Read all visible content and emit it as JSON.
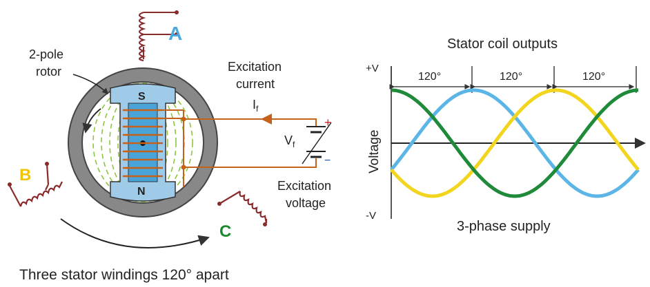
{
  "diagram": {
    "phase_labels": {
      "a": "A",
      "b": "B",
      "c": "C"
    },
    "rotor_label": [
      "2-pole",
      "rotor"
    ],
    "pole_s": "S",
    "pole_n": "N",
    "excitation_current": [
      "Excitation",
      "current"
    ],
    "current_symbol": "I",
    "current_subscript": "f",
    "voltage_symbol": "V",
    "voltage_subscript": "f",
    "plus": "+",
    "minus": "−",
    "excitation_voltage": [
      "Excitation",
      "voltage"
    ],
    "caption": "Three stator windings 120° apart"
  },
  "waveform": {
    "title": "Stator coil outputs",
    "subtitle": "3-phase supply",
    "ylabel": "Voltage",
    "y_top": "+V",
    "y_bottom": "-V",
    "interval_labels": [
      "120°",
      "120°",
      "120°"
    ],
    "colors": {
      "a": "#5bb5e6",
      "b": "#f2d51f",
      "c": "#1f8a3a",
      "a_label": "#4aa9df",
      "b_label": "#f2c500",
      "c_label": "#1a8a2e"
    }
  },
  "chart_data": {
    "type": "line",
    "x_unit": "degrees",
    "xlim": [
      0,
      360
    ],
    "ylim": [
      -1,
      1
    ],
    "series": [
      {
        "color": "#5bb5e6",
        "phase_deg": 120
      },
      {
        "color": "#f2d51f",
        "phase_deg": 240
      },
      {
        "color": "#1f8a3a",
        "phase_deg": 0
      }
    ]
  }
}
